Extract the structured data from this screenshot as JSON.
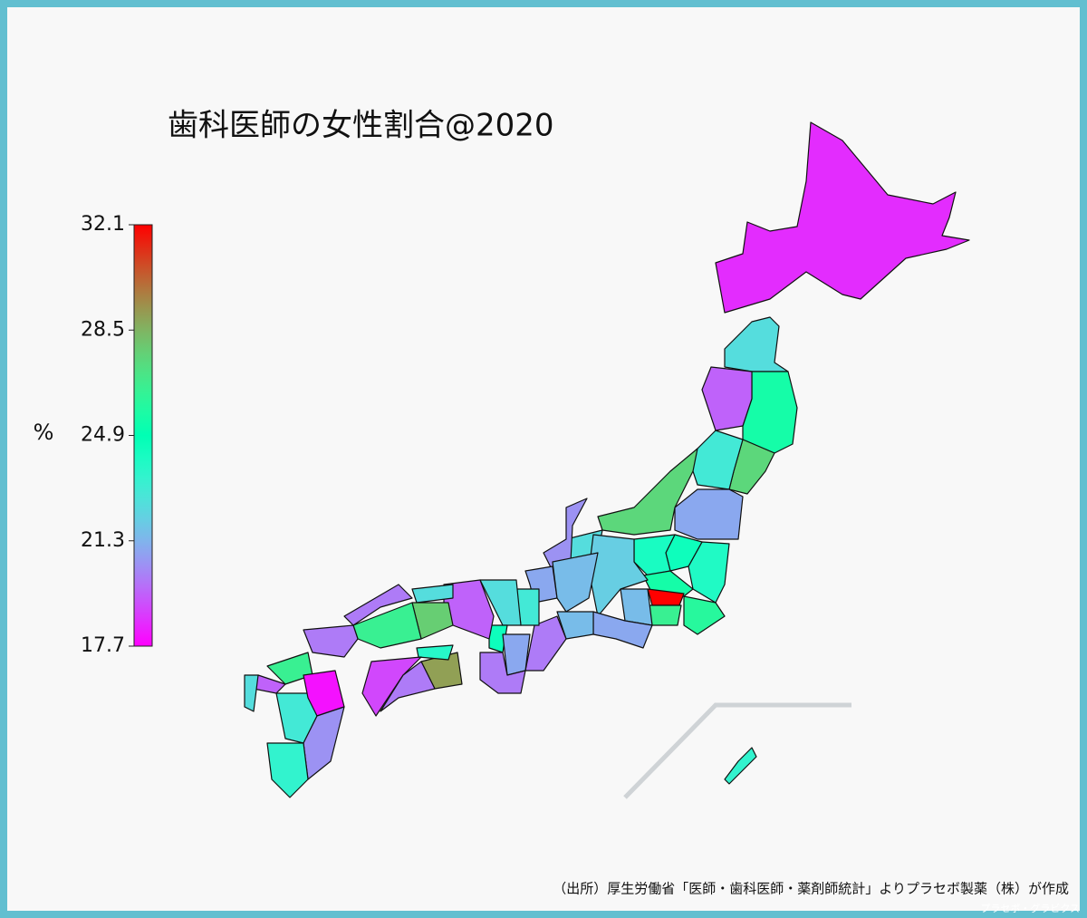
{
  "chart_data": {
    "type": "choropleth",
    "title": "歯科医師の女性割合@2020",
    "colormap": "rainbow",
    "values": [
      18.5,
      22.5,
      25.5,
      27.5,
      19.5,
      23,
      21,
      24,
      24.5,
      24.2,
      25.5,
      26,
      32.1,
      26.5,
      27.5,
      22.5,
      20.5,
      21,
      21.5,
      22,
      21.5,
      21,
      21.5,
      20,
      23,
      22.5,
      24.5,
      21,
      20,
      19.5,
      22.5,
      20,
      27.8,
      26.5,
      20,
      29,
      23.8,
      19,
      20,
      26.5,
      19.5,
      22.5,
      23,
      18,
      20.5,
      23.5,
      23.5
    ],
    "colorbar": {
      "label": "%",
      "lim": [
        17.7,
        32.1
      ],
      "ticks": [
        17.7,
        21.3,
        24.9,
        28.5,
        32.1
      ]
    },
    "source": "（出所）厚生労働省「医師・歯科医師・薬剤師統計」よりプラセボ製薬（株）が作成",
    "credit": "プラセボ・グラビクス"
  }
}
